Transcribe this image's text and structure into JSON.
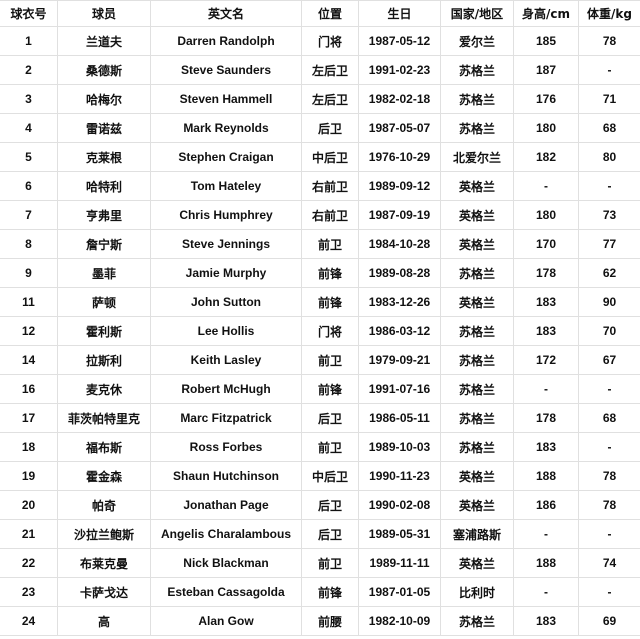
{
  "headers": [
    "球衣号",
    "球员",
    "英文名",
    "位置",
    "生日",
    "国家/地区",
    "身高/cm",
    "体重/kg"
  ],
  "rows": [
    [
      "1",
      "兰道夫",
      "Darren Randolph",
      "门将",
      "1987-05-12",
      "爱尔兰",
      "185",
      "78"
    ],
    [
      "2",
      "桑德斯",
      "Steve Saunders",
      "左后卫",
      "1991-02-23",
      "苏格兰",
      "187",
      "-"
    ],
    [
      "3",
      "哈梅尔",
      "Steven Hammell",
      "左后卫",
      "1982-02-18",
      "苏格兰",
      "176",
      "71"
    ],
    [
      "4",
      "雷诺兹",
      "Mark Reynolds",
      "后卫",
      "1987-05-07",
      "苏格兰",
      "180",
      "68"
    ],
    [
      "5",
      "克莱根",
      "Stephen Craigan",
      "中后卫",
      "1976-10-29",
      "北爱尔兰",
      "182",
      "80"
    ],
    [
      "6",
      "哈特利",
      "Tom Hateley",
      "右前卫",
      "1989-09-12",
      "英格兰",
      "-",
      "-"
    ],
    [
      "7",
      "亨弗里",
      "Chris Humphrey",
      "右前卫",
      "1987-09-19",
      "英格兰",
      "180",
      "73"
    ],
    [
      "8",
      "詹宁斯",
      "Steve Jennings",
      "前卫",
      "1984-10-28",
      "英格兰",
      "170",
      "77"
    ],
    [
      "9",
      "墨菲",
      "Jamie Murphy",
      "前锋",
      "1989-08-28",
      "苏格兰",
      "178",
      "62"
    ],
    [
      "11",
      "萨顿",
      "John Sutton",
      "前锋",
      "1983-12-26",
      "英格兰",
      "183",
      "90"
    ],
    [
      "12",
      "霍利斯",
      "Lee Hollis",
      "门将",
      "1986-03-12",
      "苏格兰",
      "183",
      "70"
    ],
    [
      "14",
      "拉斯利",
      "Keith Lasley",
      "前卫",
      "1979-09-21",
      "苏格兰",
      "172",
      "67"
    ],
    [
      "16",
      "麦克休",
      "Robert McHugh",
      "前锋",
      "1991-07-16",
      "苏格兰",
      "-",
      "-"
    ],
    [
      "17",
      "菲茨帕特里克",
      "Marc Fitzpatrick",
      "后卫",
      "1986-05-11",
      "苏格兰",
      "178",
      "68"
    ],
    [
      "18",
      "福布斯",
      "Ross Forbes",
      "前卫",
      "1989-10-03",
      "苏格兰",
      "183",
      "-"
    ],
    [
      "19",
      "霍金森",
      "Shaun Hutchinson",
      "中后卫",
      "1990-11-23",
      "英格兰",
      "188",
      "78"
    ],
    [
      "20",
      "帕奇",
      "Jonathan Page",
      "后卫",
      "1990-02-08",
      "英格兰",
      "186",
      "78"
    ],
    [
      "21",
      "沙拉兰鲍斯",
      "Angelis Charalambous",
      "后卫",
      "1989-05-31",
      "塞浦路斯",
      "-",
      "-"
    ],
    [
      "22",
      "布莱克曼",
      "Nick Blackman",
      "前卫",
      "1989-11-11",
      "英格兰",
      "188",
      "74"
    ],
    [
      "23",
      "卡萨戈达",
      "Esteban Cassagolda",
      "前锋",
      "1987-01-05",
      "比利时",
      "-",
      "-"
    ],
    [
      "24",
      "高",
      "Alan Gow",
      "前腰",
      "1982-10-09",
      "苏格兰",
      "183",
      "69"
    ]
  ]
}
